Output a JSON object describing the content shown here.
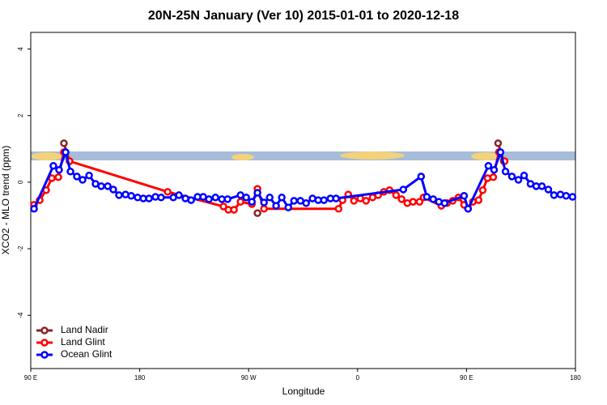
{
  "chart_data": {
    "type": "line",
    "title": "20N-25N January (Ver 10)   2015-01-01 to 2020-12-18",
    "x_label": "Longitude",
    "y_label": "XCO2 - MLO trend (ppm)",
    "xlim": [
      90,
      540
    ],
    "ylim": [
      -5.6,
      4.5
    ],
    "xticks": [
      {
        "value": 90,
        "label": "90 E"
      },
      {
        "value": 180,
        "label": "180"
      },
      {
        "value": 270,
        "label": "90 W"
      },
      {
        "value": 360,
        "label": "0"
      },
      {
        "value": 450,
        "label": "90 E"
      },
      {
        "value": 540,
        "label": "180"
      }
    ],
    "yticks": [
      -4,
      -2,
      0,
      2,
      4
    ],
    "legend": "bottom-left",
    "series": [
      {
        "name": "Land Nadir",
        "color": "#8b2323",
        "x": [
          117.4,
          122.1,
          200,
          277.3,
          400,
          476.1,
          480.8
        ],
        "values": [
          1.17,
          0.63,
          null,
          -0.93,
          null,
          1.17,
          0.63
        ]
      },
      {
        "name": "Land Glint",
        "color": "#ff0000",
        "x": [
          92.7,
          97.4,
          102.7,
          107.4,
          112.8,
          117.4,
          122.1,
          203.1,
          249.2,
          253.3,
          257.9,
          263.3,
          272.7,
          277.3,
          282.7,
          344.3,
          347.6,
          352.3,
          357,
          362.3,
          367,
          372.4,
          377,
          381.7,
          386.4,
          391.8,
          396.4,
          401.1,
          405.8,
          411.2,
          414.5,
          429.2,
          433.9,
          438.6,
          443.3,
          448,
          451.3,
          455.3,
          460,
          463.4,
          467.4,
          472.1,
          476.8,
          481.5
        ],
        "values": [
          -0.68,
          -0.54,
          -0.24,
          0.12,
          0.15,
          0.9,
          0.63,
          -0.29,
          -0.73,
          -0.83,
          -0.83,
          -0.59,
          -0.66,
          -0.2,
          -0.8,
          -0.8,
          -0.54,
          -0.37,
          -0.56,
          -0.49,
          -0.56,
          -0.46,
          -0.39,
          -0.29,
          -0.24,
          -0.39,
          -0.51,
          -0.63,
          -0.59,
          -0.59,
          -0.46,
          -0.71,
          -0.63,
          -0.56,
          -0.46,
          -0.68,
          -0.8,
          -0.59,
          -0.54,
          -0.24,
          0.12,
          0.15,
          0.9,
          0.63
        ]
      },
      {
        "name": "Ocean Glint",
        "color": "#0000ff",
        "x": [
          92.7,
          108.7,
          113.4,
          118.8,
          122.8,
          128.1,
          132.8,
          138.2,
          143.5,
          148.2,
          153.6,
          158.2,
          162.9,
          168.3,
          173,
          178.3,
          183,
          187.7,
          193,
          197.7,
          207.8,
          212.4,
          217.8,
          222.5,
          227.8,
          232.5,
          237.2,
          242.6,
          247.9,
          252.6,
          263.3,
          268,
          272.7,
          277.3,
          282.7,
          287.4,
          292.7,
          297.4,
          302.8,
          307.5,
          312.8,
          317.5,
          322.8,
          327.5,
          332.2,
          337.6,
          342.2,
          397.8,
          412.5,
          417.2,
          422.5,
          427.2,
          431.9,
          448,
          451.3,
          468.1,
          472.8,
          478.1,
          482.2,
          487.5,
          492.9,
          497.6,
          502.9,
          507.6,
          512.3,
          517.6,
          522.3,
          527.6,
          532.3,
          537.6
        ],
        "values": [
          -0.8,
          0.49,
          0.37,
          0.9,
          0.32,
          0.17,
          0.07,
          0.2,
          -0.05,
          -0.12,
          -0.12,
          -0.22,
          -0.39,
          -0.37,
          -0.41,
          -0.46,
          -0.49,
          -0.49,
          -0.44,
          -0.46,
          -0.46,
          -0.39,
          -0.49,
          -0.54,
          -0.44,
          -0.44,
          -0.51,
          -0.46,
          -0.51,
          -0.51,
          -0.39,
          -0.46,
          -0.59,
          -0.32,
          -0.61,
          -0.46,
          -0.71,
          -0.46,
          -0.76,
          -0.56,
          -0.56,
          -0.63,
          -0.49,
          -0.54,
          -0.54,
          -0.49,
          -0.49,
          -0.22,
          0.17,
          -0.44,
          -0.51,
          -0.59,
          -0.63,
          -0.41,
          -0.8,
          0.49,
          0.37,
          0.9,
          0.32,
          0.17,
          0.07,
          0.2,
          -0.05,
          -0.12,
          -0.12,
          -0.22,
          -0.39,
          -0.37,
          -0.41,
          -0.44
        ]
      }
    ]
  }
}
